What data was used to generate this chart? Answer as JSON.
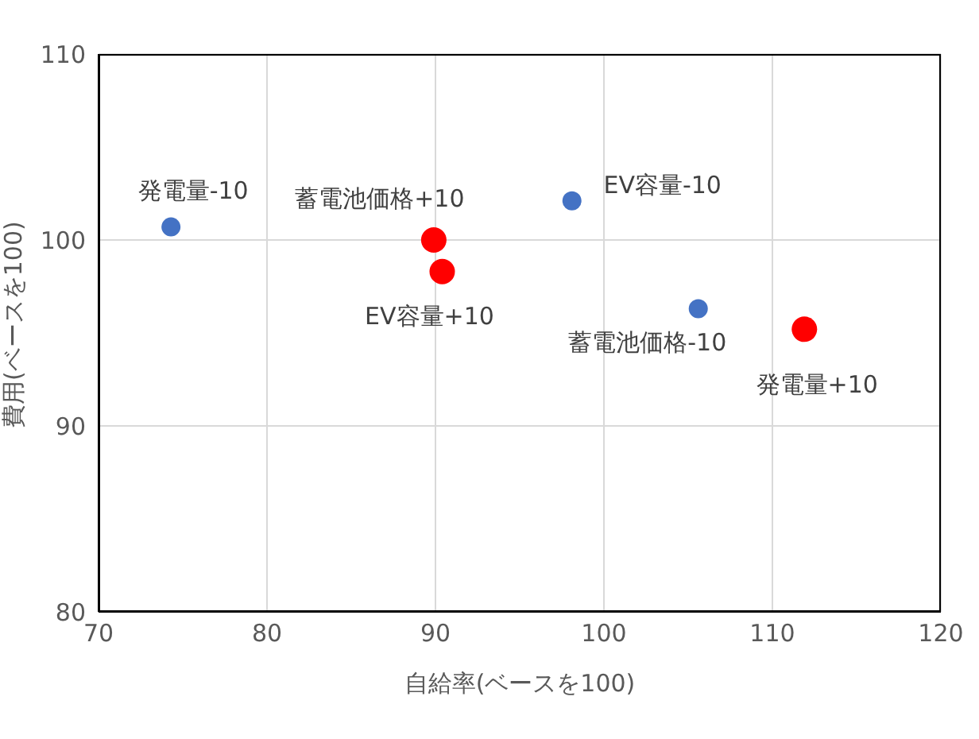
{
  "chart_data": {
    "type": "scatter",
    "xlabel": "自給率(ベースを100)",
    "ylabel": "費用(ベースを100)",
    "series": [
      {
        "color": "#4472c4",
        "x": [
          74.3,
          98.1,
          105.6
        ],
        "values": [
          100.7,
          102.1,
          96.3
        ]
      },
      {
        "color": "#ff0000",
        "x": [
          89.9,
          90.4,
          111.9
        ],
        "values": [
          100.0,
          98.3,
          95.2
        ]
      }
    ],
    "annotations": [
      {
        "text": "発電量-10",
        "x": 74.3,
        "y": 100.7
      },
      {
        "text": "蓄電池価格+10",
        "x": 89.9,
        "y": 100.0
      },
      {
        "text": "EV容量+10",
        "x": 90.4,
        "y": 98.3
      },
      {
        "text": "EV容量-10",
        "x": 98.1,
        "y": 102.1
      },
      {
        "text": "蓄電池価格-10",
        "x": 105.6,
        "y": 96.3
      },
      {
        "text": "発電量+10",
        "x": 111.9,
        "y": 95.2
      }
    ],
    "xlim": [
      70,
      120
    ],
    "xticks": [
      70,
      80,
      90,
      100,
      110,
      120
    ],
    "ylim": [
      80,
      110
    ],
    "yticks": [
      80,
      90,
      100,
      110
    ],
    "grid": true,
    "marker": "circle",
    "legend": false
  }
}
